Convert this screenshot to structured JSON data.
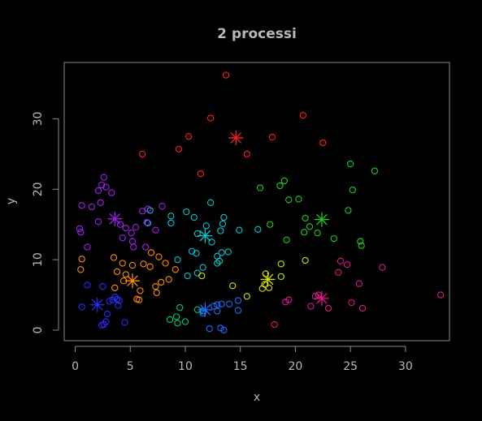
{
  "chart_data": {
    "type": "scatter",
    "title": "2 processi",
    "xlabel": "x",
    "ylabel": "y",
    "xlim": [
      -1,
      34
    ],
    "ylim": [
      -1.5,
      38
    ],
    "xticks": [
      0,
      5,
      10,
      15,
      20,
      25,
      30
    ],
    "yticks": [
      0,
      10,
      20,
      30
    ],
    "grid": false,
    "background": "#000000",
    "series": [
      {
        "color": "#ff1f1f",
        "points": [
          [
            13.7,
            36.2
          ],
          [
            12.3,
            30.1
          ],
          [
            20.7,
            30.5
          ],
          [
            10.3,
            27.5
          ],
          [
            17.9,
            27.4
          ],
          [
            22.5,
            26.6
          ],
          [
            9.4,
            25.7
          ],
          [
            6.1,
            25.0
          ],
          [
            15.6,
            25.0
          ],
          [
            11.4,
            22.2
          ]
        ],
        "centroid": [
          14.6,
          27.3
        ]
      },
      {
        "color": "#1fcc1f",
        "points": [
          [
            25.0,
            23.6
          ],
          [
            27.2,
            22.6
          ],
          [
            19.0,
            21.2
          ],
          [
            18.6,
            20.5
          ],
          [
            16.8,
            20.2
          ],
          [
            25.2,
            19.9
          ],
          [
            20.3,
            18.6
          ],
          [
            19.4,
            18.5
          ],
          [
            24.8,
            17.0
          ],
          [
            20.9,
            15.9
          ],
          [
            17.7,
            15.0
          ],
          [
            21.3,
            14.7
          ],
          [
            20.8,
            13.9
          ],
          [
            22.0,
            13.8
          ],
          [
            25.9,
            12.6
          ],
          [
            23.5,
            13.0
          ],
          [
            19.2,
            12.8
          ],
          [
            26.0,
            12.0
          ]
        ],
        "centroid": [
          22.4,
          15.7
        ]
      },
      {
        "color": "#00c8d2",
        "points": [
          [
            12.3,
            18.1
          ],
          [
            6.8,
            17.0
          ],
          [
            10.1,
            16.8
          ],
          [
            13.5,
            16.0
          ],
          [
            8.7,
            16.2
          ],
          [
            6.6,
            15.2
          ],
          [
            10.8,
            16.0
          ],
          [
            8.7,
            15.2
          ],
          [
            11.9,
            14.8
          ],
          [
            13.4,
            15.1
          ],
          [
            14.9,
            14.2
          ],
          [
            16.6,
            14.3
          ],
          [
            13.2,
            14.1
          ],
          [
            11.1,
            13.7
          ],
          [
            12.4,
            12.5
          ],
          [
            10.6,
            11.2
          ],
          [
            13.3,
            11.0
          ],
          [
            11.0,
            10.9
          ],
          [
            13.9,
            11.1
          ],
          [
            12.9,
            10.5
          ],
          [
            9.3,
            10.0
          ],
          [
            12.9,
            9.5
          ],
          [
            11.6,
            8.9
          ],
          [
            10.2,
            7.7
          ],
          [
            11.1,
            8.1
          ],
          [
            13.1,
            9.8
          ]
        ],
        "centroid": [
          11.8,
          13.4
        ]
      },
      {
        "color": "#a020f0",
        "points": [
          [
            2.6,
            21.7
          ],
          [
            2.4,
            20.6
          ],
          [
            2.8,
            20.3
          ],
          [
            2.1,
            19.8
          ],
          [
            3.3,
            19.5
          ],
          [
            0.6,
            17.7
          ],
          [
            1.5,
            17.5
          ],
          [
            2.3,
            18.1
          ],
          [
            6.1,
            16.9
          ],
          [
            6.6,
            17.2
          ],
          [
            7.9,
            17.6
          ],
          [
            2.1,
            15.4
          ],
          [
            4.1,
            15.0
          ],
          [
            6.5,
            15.3
          ],
          [
            5.5,
            14.6
          ],
          [
            4.6,
            14.5
          ],
          [
            7.3,
            14.2
          ],
          [
            5.1,
            13.8
          ],
          [
            0.5,
            13.9
          ],
          [
            0.4,
            14.4
          ],
          [
            4.3,
            13.1
          ],
          [
            5.2,
            12.6
          ],
          [
            1.1,
            11.8
          ],
          [
            5.3,
            11.8
          ],
          [
            6.4,
            11.8
          ]
        ],
        "centroid": [
          3.6,
          15.8
        ]
      },
      {
        "color": "#ff8c00",
        "points": [
          [
            3.5,
            10.3
          ],
          [
            6.9,
            11.0
          ],
          [
            7.6,
            10.4
          ],
          [
            0.6,
            10.1
          ],
          [
            4.3,
            9.5
          ],
          [
            6.2,
            9.4
          ],
          [
            6.8,
            9.0
          ],
          [
            8.2,
            9.5
          ],
          [
            5.2,
            9.2
          ],
          [
            9.1,
            8.6
          ],
          [
            0.5,
            8.6
          ],
          [
            3.8,
            8.3
          ],
          [
            4.6,
            7.9
          ],
          [
            8.5,
            7.2
          ],
          [
            4.4,
            7.0
          ],
          [
            7.8,
            6.8
          ],
          [
            7.3,
            6.2
          ],
          [
            3.6,
            6.0
          ],
          [
            5.9,
            5.6
          ],
          [
            7.4,
            5.3
          ],
          [
            5.6,
            4.4
          ],
          [
            5.8,
            4.3
          ]
        ],
        "centroid": [
          5.2,
          7.0
        ]
      },
      {
        "color": "#d2e000",
        "points": [
          [
            17.3,
            8.0
          ],
          [
            18.7,
            9.4
          ],
          [
            20.9,
            9.9
          ],
          [
            18.7,
            7.6
          ],
          [
            11.5,
            7.7
          ],
          [
            17.2,
            6.5
          ],
          [
            17.6,
            6.0
          ],
          [
            17.0,
            5.9
          ],
          [
            14.3,
            6.3
          ],
          [
            15.6,
            4.8
          ]
        ],
        "centroid": [
          17.5,
          7.2
        ]
      },
      {
        "color": "#2a2aff",
        "points": [
          [
            1.1,
            6.4
          ],
          [
            2.5,
            6.2
          ],
          [
            3.6,
            4.7
          ],
          [
            3.1,
            4.1
          ],
          [
            3.4,
            4.3
          ],
          [
            3.9,
            3.5
          ],
          [
            3.8,
            4.4
          ],
          [
            4.0,
            4.2
          ],
          [
            0.6,
            3.3
          ],
          [
            2.9,
            2.3
          ],
          [
            2.8,
            1.2
          ],
          [
            2.6,
            0.8
          ],
          [
            2.4,
            0.7
          ],
          [
            4.5,
            1.1
          ]
        ],
        "centroid": [
          2.0,
          3.6
        ]
      },
      {
        "color": "#1f6bff",
        "points": [
          [
            12.6,
            3.4
          ],
          [
            12.9,
            3.6
          ],
          [
            13.3,
            3.7
          ],
          [
            14.8,
            4.2
          ],
          [
            14.0,
            3.7
          ],
          [
            11.6,
            2.4
          ],
          [
            12.9,
            2.7
          ],
          [
            14.8,
            2.8
          ],
          [
            12.2,
            0.2
          ],
          [
            13.2,
            0.3
          ],
          [
            13.5,
            0.0
          ]
        ],
        "centroid": [
          11.8,
          2.9
        ]
      },
      {
        "color": "#00c878",
        "points": [
          [
            9.5,
            3.2
          ],
          [
            11.1,
            2.9
          ],
          [
            11.6,
            2.7
          ],
          [
            9.2,
            1.9
          ],
          [
            8.6,
            1.5
          ],
          [
            10.0,
            1.2
          ],
          [
            9.3,
            1.0
          ]
        ],
        "centroid": [
          11.8,
          2.9
        ]
      },
      {
        "color": "#e0158c",
        "points": [
          [
            24.1,
            9.8
          ],
          [
            24.7,
            9.3
          ],
          [
            27.9,
            8.9
          ],
          [
            23.9,
            8.2
          ],
          [
            25.8,
            6.6
          ],
          [
            19.1,
            4.0
          ],
          [
            19.4,
            4.3
          ],
          [
            21.8,
            4.8
          ],
          [
            22.1,
            5.0
          ],
          [
            21.4,
            3.4
          ],
          [
            23.0,
            3.1
          ],
          [
            25.1,
            3.9
          ],
          [
            26.1,
            3.1
          ],
          [
            18.1,
            0.8
          ],
          [
            33.2,
            5.0
          ]
        ],
        "centroid": [
          22.4,
          4.5
        ]
      }
    ]
  }
}
